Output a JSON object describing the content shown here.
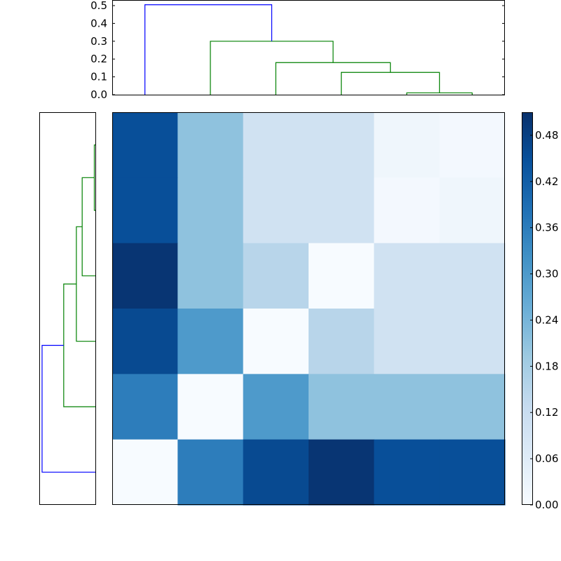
{
  "chart_data": {
    "type": "heatmap",
    "title": "",
    "description": "Clustered distance matrix heatmap with row and column dendrograms and a colorbar",
    "colormap": "Blues",
    "heatmap": {
      "rows": 6,
      "cols": 6,
      "xlabel": "",
      "ylabel": "",
      "values": [
        [
          0.45,
          0.21,
          0.1,
          0.1,
          0.02,
          0.01
        ],
        [
          0.45,
          0.21,
          0.1,
          0.1,
          0.01,
          0.02
        ],
        [
          0.5,
          0.21,
          0.15,
          0.0,
          0.1,
          0.1
        ],
        [
          0.46,
          0.3,
          0.0,
          0.15,
          0.1,
          0.1
        ],
        [
          0.36,
          0.0,
          0.3,
          0.21,
          0.21,
          0.21
        ],
        [
          0.0,
          0.36,
          0.46,
          0.5,
          0.45,
          0.45
        ]
      ]
    },
    "top_dendrogram": {
      "ylim": [
        0.0,
        0.52
      ],
      "yticks": [
        "0.0",
        "0.1",
        "0.2",
        "0.3",
        "0.4",
        "0.5"
      ],
      "leaf_count": 6,
      "links": [
        {
          "left": 5,
          "right": 6,
          "height": 0.01,
          "color": "#008000"
        },
        {
          "left": 4,
          "right": "c1",
          "height": 0.125,
          "color": "#008000"
        },
        {
          "left": 3,
          "right": "c2",
          "height": 0.18,
          "color": "#008000"
        },
        {
          "left": 2,
          "right": "c3",
          "height": 0.3,
          "color": "#008000"
        },
        {
          "left": 1,
          "right": "c4",
          "height": 0.505,
          "color": "#0000ff"
        }
      ]
    },
    "left_dendrogram": {
      "orientation": "left",
      "leaf_count": 6,
      "links": [
        {
          "top": 1,
          "bottom": 2,
          "height": 0.01,
          "color": "#008000"
        },
        {
          "top": "c1",
          "bottom": 3,
          "height": 0.125,
          "color": "#008000"
        },
        {
          "top": "c2",
          "bottom": 4,
          "height": 0.18,
          "color": "#008000"
        },
        {
          "top": "c3",
          "bottom": 5,
          "height": 0.3,
          "color": "#008000"
        },
        {
          "top": "c4",
          "bottom": 6,
          "height": 0.505,
          "color": "#0000ff"
        }
      ]
    },
    "colorbar": {
      "min": 0.0,
      "max": 0.51,
      "ticks": [
        "0.00",
        "0.06",
        "0.12",
        "0.18",
        "0.24",
        "0.30",
        "0.36",
        "0.42",
        "0.48"
      ]
    }
  },
  "colors": {
    "cluster_link": "#008000",
    "root_link": "#0000ff",
    "axes": "#000000"
  }
}
